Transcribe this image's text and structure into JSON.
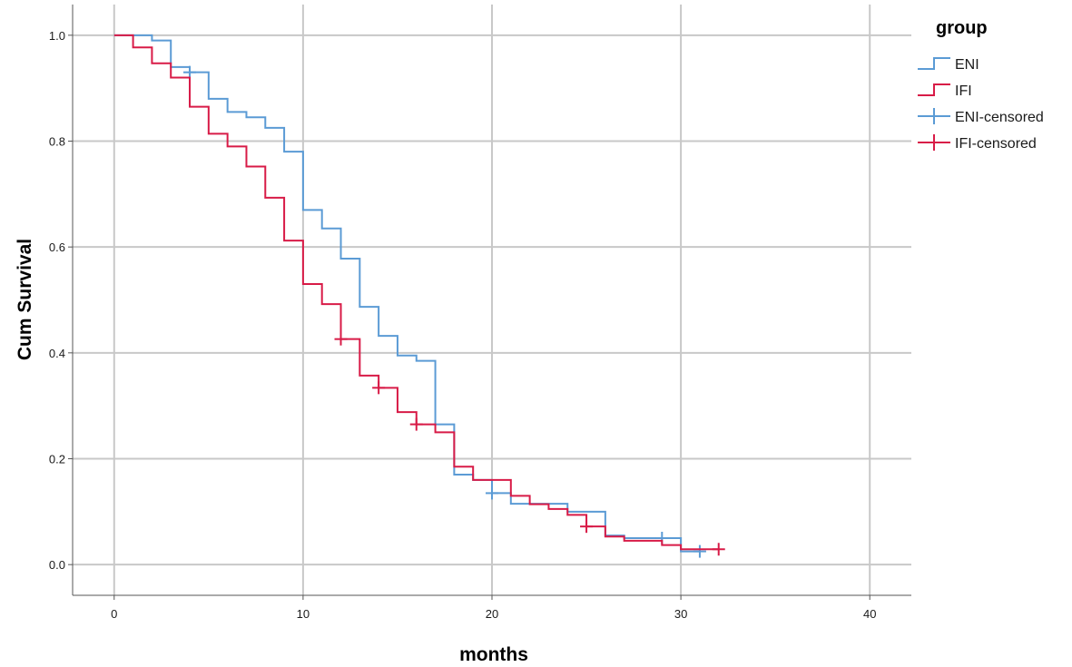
{
  "chart_data": {
    "type": "line",
    "subtype": "kaplan-meier-step",
    "xlabel": "months",
    "ylabel": "Cum Survival",
    "xlim": [
      -2.2,
      42.2
    ],
    "ylim": [
      -0.058,
      1.058
    ],
    "x_ticks": [
      0,
      10,
      20,
      30,
      40
    ],
    "x_tick_labels": [
      "0",
      "10",
      "20",
      "30",
      "40"
    ],
    "y_ticks": [
      0.0,
      0.2,
      0.4,
      0.6,
      0.8,
      1.0
    ],
    "y_tick_labels": [
      "0.0",
      "0.2",
      "0.4",
      "0.6",
      "0.8",
      "1.0"
    ],
    "grid": true,
    "legend": {
      "title": "group",
      "position": "right",
      "entries": [
        "ENI",
        "IFI",
        "ENI-censored",
        "IFI-censored"
      ]
    },
    "series": [
      {
        "name": "ENI",
        "color": "#5b9bd5",
        "steps": [
          [
            0,
            1.0
          ],
          [
            2,
            0.99
          ],
          [
            3,
            0.94
          ],
          [
            4,
            0.93
          ],
          [
            5,
            0.88
          ],
          [
            6,
            0.855
          ],
          [
            7,
            0.845
          ],
          [
            8,
            0.825
          ],
          [
            9,
            0.78
          ],
          [
            10,
            0.67
          ],
          [
            11,
            0.635
          ],
          [
            12,
            0.578
          ],
          [
            13,
            0.487
          ],
          [
            14,
            0.432
          ],
          [
            15,
            0.395
          ],
          [
            16,
            0.385
          ],
          [
            17,
            0.265
          ],
          [
            18,
            0.17
          ],
          [
            19,
            0.16
          ],
          [
            20,
            0.135
          ],
          [
            21,
            0.115
          ],
          [
            23,
            0.115
          ],
          [
            24,
            0.1
          ],
          [
            26,
            0.055
          ],
          [
            27,
            0.05
          ],
          [
            30,
            0.025
          ],
          [
            31,
            0.025
          ]
        ],
        "censored": [
          [
            4,
            0.93
          ],
          [
            20,
            0.135
          ],
          [
            29,
            0.05
          ],
          [
            31,
            0.025
          ]
        ]
      },
      {
        "name": "IFI",
        "color": "#d81b47",
        "steps": [
          [
            0,
            1.0
          ],
          [
            1,
            0.977
          ],
          [
            2,
            0.947
          ],
          [
            3,
            0.92
          ],
          [
            4,
            0.865
          ],
          [
            5,
            0.814
          ],
          [
            6,
            0.79
          ],
          [
            7,
            0.752
          ],
          [
            8,
            0.693
          ],
          [
            9,
            0.612
          ],
          [
            10,
            0.53
          ],
          [
            11,
            0.492
          ],
          [
            12,
            0.426
          ],
          [
            13,
            0.357
          ],
          [
            14,
            0.334
          ],
          [
            15,
            0.288
          ],
          [
            16,
            0.265
          ],
          [
            17,
            0.25
          ],
          [
            18,
            0.185
          ],
          [
            19,
            0.16
          ],
          [
            21,
            0.13
          ],
          [
            22,
            0.114
          ],
          [
            23,
            0.105
          ],
          [
            24,
            0.094
          ],
          [
            25,
            0.072
          ],
          [
            26,
            0.053
          ],
          [
            27,
            0.045
          ],
          [
            29,
            0.037
          ],
          [
            30,
            0.029
          ],
          [
            32,
            0.029
          ]
        ],
        "censored": [
          [
            12,
            0.426
          ],
          [
            14,
            0.334
          ],
          [
            16,
            0.265
          ],
          [
            25,
            0.072
          ],
          [
            32,
            0.029
          ]
        ]
      }
    ]
  }
}
